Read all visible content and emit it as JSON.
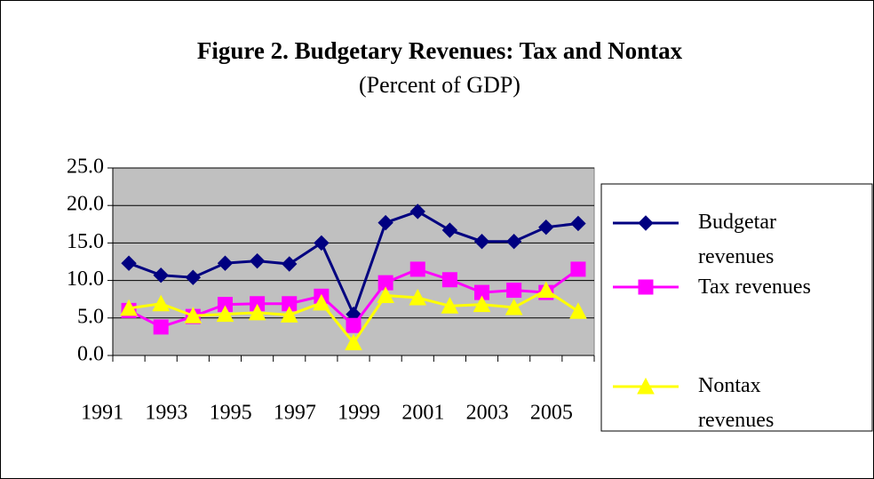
{
  "chart_data": {
    "type": "line",
    "title": "Figure 2. Budgetary Revenues: Tax and Nontax",
    "subtitle": "(Percent of GDP)",
    "categories": [
      "1991",
      null,
      "1993",
      null,
      "1995",
      null,
      "1997",
      null,
      "1999",
      null,
      "2001",
      null,
      "2003",
      null,
      "2005"
    ],
    "series": [
      {
        "name": "Budgetar revenues",
        "color": "#000080",
        "marker": "diamond",
        "values": [
          12.3,
          10.7,
          10.4,
          12.3,
          12.6,
          12.2,
          15.0,
          5.5,
          17.7,
          19.2,
          16.7,
          15.2,
          15.2,
          17.1,
          17.6
        ]
      },
      {
        "name": "Tax revenues",
        "color": "#ff00ff",
        "marker": "square",
        "values": [
          6.0,
          3.8,
          5.2,
          6.8,
          6.9,
          6.9,
          7.9,
          4.0,
          9.7,
          11.5,
          10.1,
          8.4,
          8.7,
          8.4,
          11.5
        ]
      },
      {
        "name": "Nontax revenues",
        "color": "#ffff00",
        "marker": "triangle",
        "values": [
          6.3,
          6.9,
          5.3,
          5.5,
          5.7,
          5.4,
          7.0,
          1.7,
          8.0,
          7.7,
          6.6,
          6.8,
          6.4,
          8.7,
          5.9
        ]
      }
    ],
    "ylim": [
      0,
      25
    ],
    "yticks": [
      {
        "value": 0,
        "label": "0.0"
      },
      {
        "value": 5,
        "label": "5.0"
      },
      {
        "value": 10,
        "label": "10.0"
      },
      {
        "value": 15,
        "label": "15.0"
      },
      {
        "value": 20,
        "label": "20.0"
      },
      {
        "value": 25,
        "label": "25.0"
      }
    ],
    "grid": true,
    "plot_background": "#c0c0c0",
    "legend": "right"
  }
}
